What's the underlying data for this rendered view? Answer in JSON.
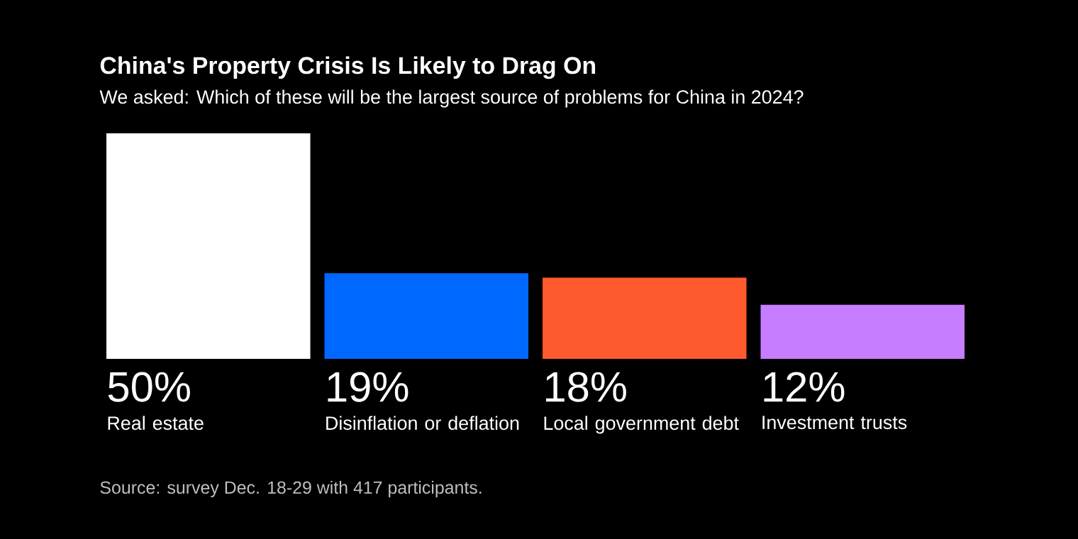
{
  "chart_data": {
    "type": "bar",
    "title": "China's Property Crisis Is Likely to Drag On",
    "subtitle": "We asked: Which of these will be the largest source of problems for China in 2024?",
    "categories": [
      "Real estate",
      "Disinflation or deflation",
      "Local government debt",
      "Investment trusts"
    ],
    "values": [
      50,
      19,
      18,
      12
    ],
    "value_labels": [
      "50%",
      "19%",
      "18%",
      "12%"
    ],
    "colors": [
      "#ffffff",
      "#0068ff",
      "#ff5a2d",
      "#c77dff"
    ],
    "annotations": [
      "Source: survey Dec. 18-29 with 417 participants."
    ]
  }
}
